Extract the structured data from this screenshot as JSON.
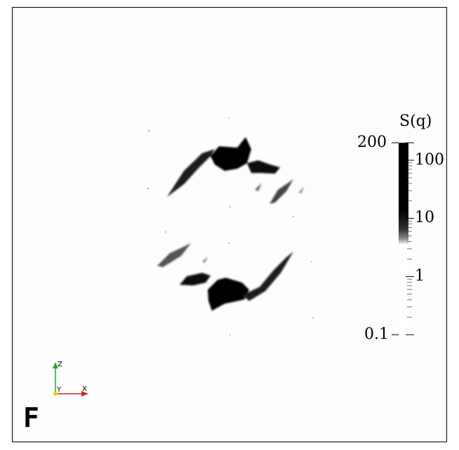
{
  "colorbar": {
    "title": "S(q)",
    "scale": "log",
    "range": [
      0.1,
      200
    ],
    "ticks": [
      {
        "label": "200",
        "value": 200
      },
      {
        "label": "100",
        "value": 100
      },
      {
        "label": "10",
        "value": 10
      },
      {
        "label": "1",
        "value": 1
      },
      {
        "label": "0.1",
        "value": 0.1
      }
    ],
    "colormap": [
      "#ffffff",
      "#000000"
    ]
  },
  "panel_label": "F",
  "orientation_axes": {
    "z": {
      "label": "Z",
      "color": "#22aa22"
    },
    "y": {
      "label": "Y",
      "color": "#e8d000"
    },
    "x": {
      "label": "X",
      "color": "#dd2222"
    }
  }
}
